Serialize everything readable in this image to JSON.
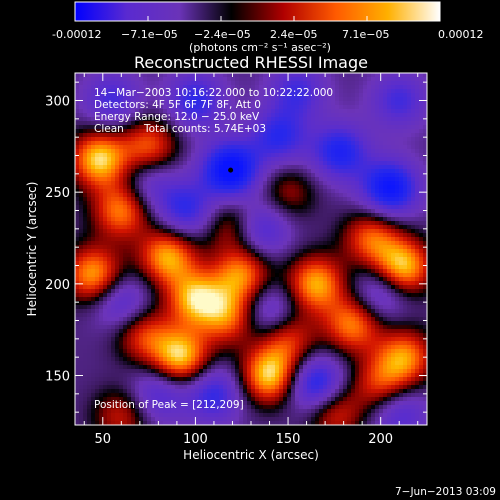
{
  "colorbar": {
    "tick_labels": [
      "-0.00012",
      "−7.1e−05",
      "−2.4e−05",
      "2.4e−05",
      "7.1e−05",
      "0.00012"
    ],
    "units_label": "(photons cm⁻² s⁻¹ asec⁻²)",
    "colors": [
      "#0000ff",
      "#5a2ad0",
      "#6a33b8",
      "#000000",
      "#b00000",
      "#ff5a00",
      "#ffb000",
      "#ffffff"
    ]
  },
  "chart_data": {
    "type": "heatmap",
    "title": "Reconstructed RHESSI Image",
    "xlabel": "Heliocentric X (arcsec)",
    "ylabel": "Heliocentric Y (arcsec)",
    "xlim": [
      35,
      225
    ],
    "ylim": [
      123,
      315
    ],
    "x_ticks": [
      50,
      100,
      150,
      200
    ],
    "y_ticks": [
      150,
      200,
      250,
      300
    ],
    "annotations": {
      "time_range": "14−Mar−2003 10:16:22.000 to 10:22:22.000",
      "detectors": "Detectors: 4F 5F 6F 7F 8F, Att 0",
      "energy_range": "Energy Range: 12.0 − 25.0 keV",
      "clean": "Clean",
      "total_counts": "Total counts: 5.74E+03",
      "peak_position": "Position of Peak = [212,209]"
    },
    "marker": {
      "x": 119,
      "y": 262
    },
    "blobs": [
      {
        "x": 48,
        "y": 268,
        "v": 1.0
      },
      {
        "x": 75,
        "y": 275,
        "v": 0.7
      },
      {
        "x": 60,
        "y": 240,
        "v": 0.8
      },
      {
        "x": 45,
        "y": 205,
        "v": 0.9
      },
      {
        "x": 85,
        "y": 215,
        "v": 0.9
      },
      {
        "x": 100,
        "y": 192,
        "v": 0.9
      },
      {
        "x": 125,
        "y": 205,
        "v": 0.8
      },
      {
        "x": 118,
        "y": 182,
        "v": 0.7
      },
      {
        "x": 92,
        "y": 160,
        "v": 1.0
      },
      {
        "x": 72,
        "y": 172,
        "v": 0.6
      },
      {
        "x": 140,
        "y": 150,
        "v": 1.0
      },
      {
        "x": 150,
        "y": 170,
        "v": 0.6
      },
      {
        "x": 165,
        "y": 200,
        "v": 0.9
      },
      {
        "x": 185,
        "y": 178,
        "v": 0.8
      },
      {
        "x": 212,
        "y": 209,
        "v": 1.0
      },
      {
        "x": 195,
        "y": 225,
        "v": 0.7
      },
      {
        "x": 213,
        "y": 160,
        "v": 0.8
      },
      {
        "x": 200,
        "y": 145,
        "v": 0.6
      },
      {
        "x": 175,
        "y": 130,
        "v": 0.6
      },
      {
        "x": 60,
        "y": 128,
        "v": 0.5
      },
      {
        "x": 120,
        "y": 232,
        "v": 0.5
      },
      {
        "x": 150,
        "y": 250,
        "v": 0.4
      },
      {
        "x": 119,
        "y": 262,
        "v": -1.0
      },
      {
        "x": 205,
        "y": 252,
        "v": -0.9
      },
      {
        "x": 165,
        "y": 145,
        "v": -0.8
      },
      {
        "x": 178,
        "y": 272,
        "v": -0.7
      },
      {
        "x": 95,
        "y": 240,
        "v": -0.6
      },
      {
        "x": 145,
        "y": 280,
        "v": -0.6
      },
      {
        "x": 135,
        "y": 230,
        "v": -0.6
      },
      {
        "x": 60,
        "y": 190,
        "v": -0.5
      },
      {
        "x": 110,
        "y": 140,
        "v": -0.6
      },
      {
        "x": 80,
        "y": 140,
        "v": -0.5
      },
      {
        "x": 200,
        "y": 195,
        "v": -0.5
      },
      {
        "x": 55,
        "y": 300,
        "v": -0.5
      },
      {
        "x": 100,
        "y": 300,
        "v": -0.6
      },
      {
        "x": 155,
        "y": 305,
        "v": -0.5
      },
      {
        "x": 210,
        "y": 300,
        "v": -0.5
      },
      {
        "x": 210,
        "y": 130,
        "v": -0.5
      },
      {
        "x": 140,
        "y": 185,
        "v": -0.5
      },
      {
        "x": 75,
        "y": 255,
        "v": -0.4
      }
    ]
  },
  "footer": {
    "date_stamp": "7−Jun−2013 03:09"
  }
}
